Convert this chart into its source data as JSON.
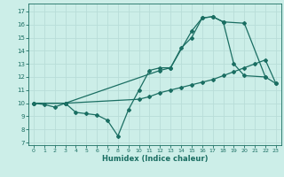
{
  "xlabel": "Humidex (Indice chaleur)",
  "bg_color": "#cceee8",
  "grid_color": "#b8ddd8",
  "line_color": "#1a6e62",
  "xlim": [
    -0.5,
    23.5
  ],
  "ylim": [
    6.8,
    17.6
  ],
  "xticks": [
    0,
    1,
    2,
    3,
    4,
    5,
    6,
    7,
    8,
    9,
    10,
    11,
    12,
    13,
    14,
    15,
    16,
    17,
    18,
    19,
    20,
    21,
    22,
    23
  ],
  "yticks": [
    7,
    8,
    9,
    10,
    11,
    12,
    13,
    14,
    15,
    16,
    17
  ],
  "line1_x": [
    0,
    1,
    2,
    3,
    4,
    5,
    6,
    7,
    8,
    9,
    10,
    11,
    12,
    13,
    14,
    15,
    16,
    17,
    18,
    19,
    20,
    22
  ],
  "line1_y": [
    10.0,
    9.9,
    9.7,
    10.0,
    9.3,
    9.2,
    9.1,
    8.7,
    7.5,
    9.5,
    11.0,
    12.5,
    12.7,
    12.7,
    14.2,
    15.0,
    16.5,
    16.6,
    16.2,
    13.0,
    12.1,
    12.0
  ],
  "line2_x": [
    0,
    3,
    12,
    13,
    15,
    16,
    17,
    18,
    20,
    22,
    23
  ],
  "line2_y": [
    10.0,
    10.0,
    12.5,
    12.7,
    15.5,
    16.5,
    16.6,
    16.2,
    16.1,
    12.0,
    11.5
  ],
  "line3_x": [
    0,
    3,
    10,
    11,
    12,
    13,
    14,
    15,
    16,
    17,
    18,
    19,
    20,
    21,
    22,
    23
  ],
  "line3_y": [
    10.0,
    10.0,
    10.3,
    10.5,
    10.8,
    11.0,
    11.2,
    11.4,
    11.6,
    11.8,
    12.1,
    12.4,
    12.7,
    13.0,
    13.3,
    11.5
  ]
}
